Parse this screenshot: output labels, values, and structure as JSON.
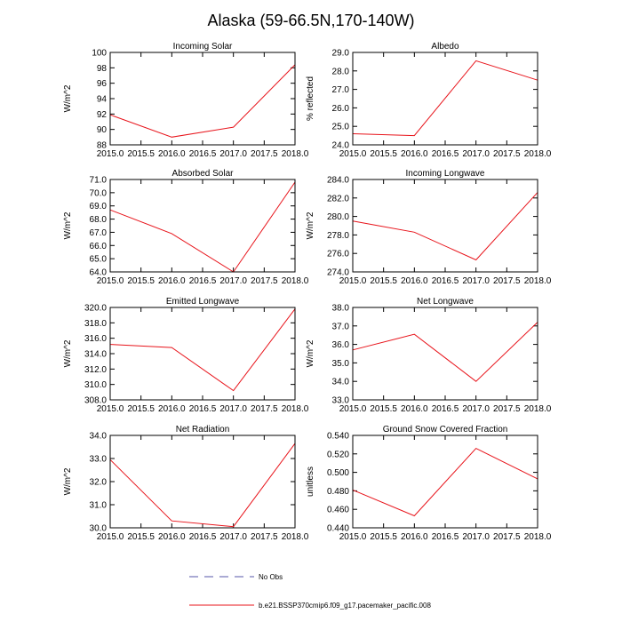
{
  "figure": {
    "title": "Alaska (59-66.5N,170-140W)"
  },
  "legend": {
    "obs_label": "No Obs",
    "model_label": "b.e21.BSSP370cmip6.f09_g17.pacemaker_pacific.008"
  },
  "colors": {
    "model": "#e8141b",
    "obs": "#5555aa",
    "axis": "#000000"
  },
  "chart_data": [
    {
      "type": "line",
      "title": "Incoming Solar",
      "ylabel": "W/m^2",
      "xlabel": "",
      "x": [
        2015,
        2016,
        2017,
        2018
      ],
      "series": [
        {
          "name": "b.e21.BSSP370cmip6.f09_g17.pacemaker_pacific.008",
          "values": [
            91.9,
            89.0,
            90.3,
            98.4
          ]
        }
      ],
      "xlim": [
        2015,
        2018
      ],
      "ylim": [
        88,
        100
      ],
      "xticks": [
        "2015.0",
        "2015.5",
        "2016.0",
        "2016.5",
        "2017.0",
        "2017.5",
        "2018.0"
      ],
      "yticks": [
        "88",
        "90",
        "92",
        "94",
        "96",
        "98",
        "100"
      ]
    },
    {
      "type": "line",
      "title": "Albedo",
      "ylabel": "% reflected",
      "xlabel": "",
      "x": [
        2015,
        2016,
        2017,
        2018
      ],
      "series": [
        {
          "name": "b.e21.BSSP370cmip6.f09_g17.pacemaker_pacific.008",
          "values": [
            24.6,
            24.5,
            28.55,
            27.5
          ]
        }
      ],
      "xlim": [
        2015,
        2018
      ],
      "ylim": [
        24,
        29
      ],
      "xticks": [
        "2015.0",
        "2015.5",
        "2016.0",
        "2016.5",
        "2017.0",
        "2017.5",
        "2018.0"
      ],
      "yticks": [
        "24.0",
        "25.0",
        "26.0",
        "27.0",
        "28.0",
        "29.0"
      ]
    },
    {
      "type": "line",
      "title": "Absorbed Solar",
      "ylabel": "W/m^2",
      "xlabel": "",
      "x": [
        2015,
        2016,
        2017,
        2018
      ],
      "series": [
        {
          "name": "b.e21.BSSP370cmip6.f09_g17.pacemaker_pacific.008",
          "values": [
            68.7,
            66.9,
            64.0,
            70.8
          ]
        }
      ],
      "xlim": [
        2015,
        2018
      ],
      "ylim": [
        64,
        71
      ],
      "xticks": [
        "2015.0",
        "2015.5",
        "2016.0",
        "2016.5",
        "2017.0",
        "2017.5",
        "2018.0"
      ],
      "yticks": [
        "64.0",
        "65.0",
        "66.0",
        "67.0",
        "68.0",
        "69.0",
        "70.0",
        "71.0"
      ]
    },
    {
      "type": "line",
      "title": "Incoming Longwave",
      "ylabel": "W/m^2",
      "xlabel": "",
      "x": [
        2015,
        2016,
        2017,
        2018
      ],
      "series": [
        {
          "name": "b.e21.BSSP370cmip6.f09_g17.pacemaker_pacific.008",
          "values": [
            279.5,
            278.3,
            275.3,
            282.6
          ]
        }
      ],
      "xlim": [
        2015,
        2018
      ],
      "ylim": [
        274,
        284
      ],
      "xticks": [
        "2015.0",
        "2015.5",
        "2016.0",
        "2016.5",
        "2017.0",
        "2017.5",
        "2018.0"
      ],
      "yticks": [
        "274.0",
        "276.0",
        "278.0",
        "280.0",
        "282.0",
        "284.0"
      ]
    },
    {
      "type": "line",
      "title": "Emitted Longwave",
      "ylabel": "W/m^2",
      "xlabel": "",
      "x": [
        2015,
        2016,
        2017,
        2018
      ],
      "series": [
        {
          "name": "b.e21.BSSP370cmip6.f09_g17.pacemaker_pacific.008",
          "values": [
            315.2,
            314.8,
            309.2,
            319.8
          ]
        }
      ],
      "xlim": [
        2015,
        2018
      ],
      "ylim": [
        308,
        320
      ],
      "xticks": [
        "2015.0",
        "2015.5",
        "2016.0",
        "2016.5",
        "2017.0",
        "2017.5",
        "2018.0"
      ],
      "yticks": [
        "308.0",
        "310.0",
        "312.0",
        "314.0",
        "316.0",
        "318.0",
        "320.0"
      ]
    },
    {
      "type": "line",
      "title": "Net Longwave",
      "ylabel": "W/m^2",
      "xlabel": "",
      "x": [
        2015,
        2016,
        2017,
        2018
      ],
      "series": [
        {
          "name": "b.e21.BSSP370cmip6.f09_g17.pacemaker_pacific.008",
          "values": [
            35.7,
            36.55,
            34.0,
            37.2
          ]
        }
      ],
      "xlim": [
        2015,
        2018
      ],
      "ylim": [
        33,
        38
      ],
      "xticks": [
        "2015.0",
        "2015.5",
        "2016.0",
        "2016.5",
        "2017.0",
        "2017.5",
        "2018.0"
      ],
      "yticks": [
        "33.0",
        "34.0",
        "35.0",
        "36.0",
        "37.0",
        "38.0"
      ]
    },
    {
      "type": "line",
      "title": "Net Radiation",
      "ylabel": "W/m^2",
      "xlabel": "",
      "x": [
        2015,
        2016,
        2017,
        2018
      ],
      "series": [
        {
          "name": "b.e21.BSSP370cmip6.f09_g17.pacemaker_pacific.008",
          "values": [
            32.95,
            30.3,
            30.05,
            33.65
          ]
        }
      ],
      "xlim": [
        2015,
        2018
      ],
      "ylim": [
        30,
        34
      ],
      "xticks": [
        "2015.0",
        "2015.5",
        "2016.0",
        "2016.5",
        "2017.0",
        "2017.5",
        "2018.0"
      ],
      "yticks": [
        "30.0",
        "31.0",
        "32.0",
        "33.0",
        "34.0"
      ]
    },
    {
      "type": "line",
      "title": "Ground Snow Covered Fraction",
      "ylabel": "unitless",
      "xlabel": "",
      "x": [
        2015,
        2016,
        2017,
        2018
      ],
      "series": [
        {
          "name": "b.e21.BSSP370cmip6.f09_g17.pacemaker_pacific.008",
          "values": [
            0.481,
            0.453,
            0.526,
            0.493
          ]
        }
      ],
      "xlim": [
        2015,
        2018
      ],
      "ylim": [
        0.44,
        0.54
      ],
      "xticks": [
        "2015.0",
        "2015.5",
        "2016.0",
        "2016.5",
        "2017.0",
        "2017.5",
        "2018.0"
      ],
      "yticks": [
        "0.440",
        "0.460",
        "0.480",
        "0.500",
        "0.520",
        "0.540"
      ]
    }
  ]
}
